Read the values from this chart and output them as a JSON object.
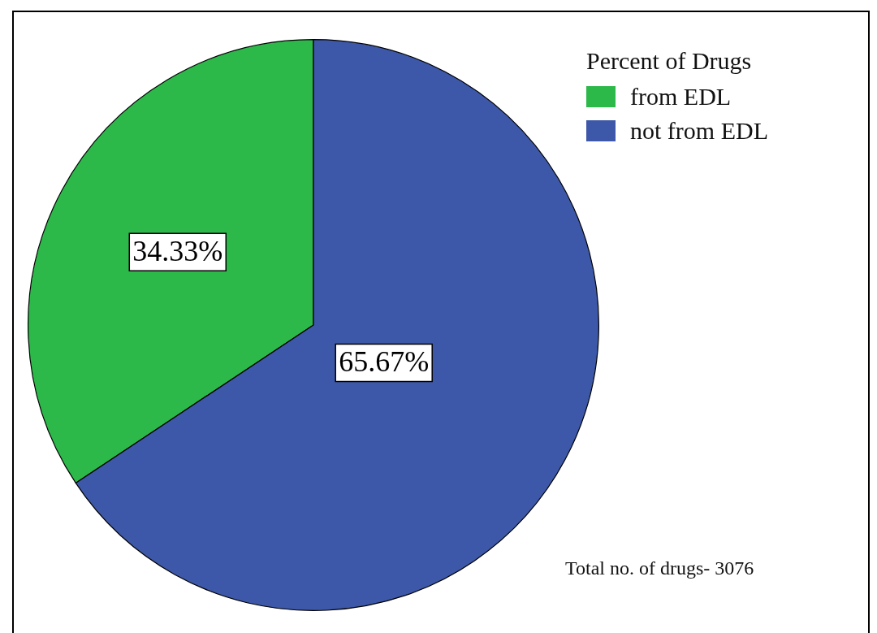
{
  "chart_data": {
    "type": "pie",
    "categories": [
      "from EDL",
      "not from EDL"
    ],
    "values": [
      34.33,
      65.67
    ],
    "colors": [
      "#2db84a",
      "#3d58a8"
    ],
    "value_labels": [
      "34.33%",
      "65.67%"
    ],
    "legend_title": "Percent of Drugs",
    "legend": "top right",
    "annotations": [
      "Total no. of drugs- 3076"
    ]
  }
}
